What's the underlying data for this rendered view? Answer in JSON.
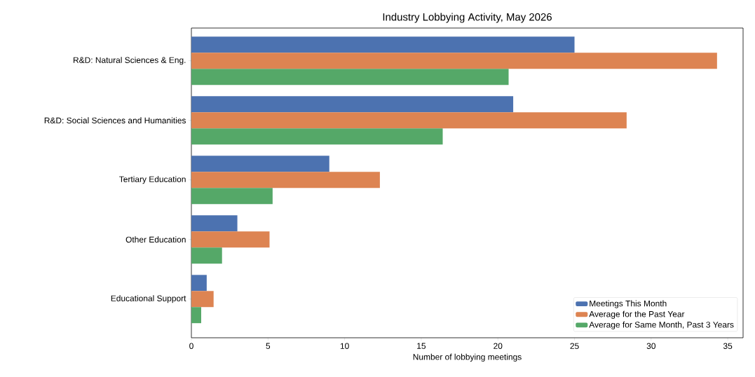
{
  "chart_data": {
    "type": "bar",
    "orientation": "horizontal",
    "title": "Industry Lobbying Activity, May 2026",
    "xlabel": "Number of lobbying meetings",
    "categories": [
      "R&D: Natural Sciences & Eng.",
      "R&D: Social Sciences and Humanities",
      "Tertiary Education",
      "Other Education",
      "Educational Support"
    ],
    "series": [
      {
        "name": "Meetings This Month",
        "color": "#4c72b0",
        "values": [
          25,
          21,
          9,
          3,
          1
        ]
      },
      {
        "name": "Average for the Past Year",
        "color": "#dd8452",
        "values": [
          34.3,
          28.4,
          12.3,
          5.1,
          1.45
        ]
      },
      {
        "name": "Average for Same Month, Past 3 Years",
        "color": "#55a868",
        "values": [
          20.7,
          16.4,
          5.3,
          2.0,
          0.64
        ]
      }
    ],
    "xlim": [
      0,
      36
    ],
    "xticks": [
      0,
      5,
      10,
      15,
      20,
      25,
      30,
      35
    ],
    "legend": "bottom right"
  }
}
